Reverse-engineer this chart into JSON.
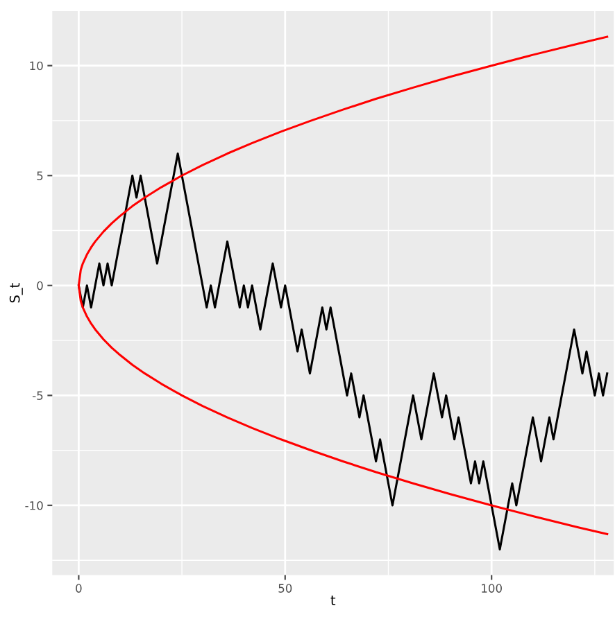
{
  "chart_data": {
    "type": "line",
    "xlabel": "t",
    "ylabel": "S_t",
    "xlim": [
      -6.4,
      129.6
    ],
    "ylim": [
      -13.17,
      12.48
    ],
    "xticks": [
      0,
      50,
      100
    ],
    "yticks": [
      -10,
      -5,
      0,
      5,
      10
    ],
    "grid": true,
    "legend": false,
    "marker": "none",
    "line_style": "solid",
    "series": [
      {
        "color": "#000000",
        "x": [
          0,
          1,
          2,
          3,
          5,
          6,
          7,
          8,
          13,
          14,
          15,
          19,
          24,
          31,
          32,
          33,
          36,
          39,
          40,
          41,
          42,
          44,
          47,
          49,
          50,
          53,
          54,
          56,
          59,
          60,
          61,
          65,
          66,
          68,
          69,
          72,
          73,
          76,
          81,
          83,
          86,
          88,
          89,
          91,
          92,
          95,
          96,
          97,
          98,
          102,
          105,
          106,
          110,
          112,
          114,
          115,
          120,
          122,
          123,
          125,
          126,
          127,
          128
        ],
        "values": [
          0,
          -1,
          0,
          -1,
          1,
          0,
          1,
          0,
          5,
          4,
          5,
          1,
          6,
          -1,
          0,
          -1,
          2,
          -1,
          0,
          -1,
          0,
          -2,
          1,
          -1,
          0,
          -3,
          -2,
          -4,
          -1,
          -2,
          -1,
          -5,
          -4,
          -6,
          -5,
          -8,
          -7,
          -10,
          -5,
          -7,
          -4,
          -6,
          -5,
          -7,
          -6,
          -9,
          -8,
          -9,
          -8,
          -12,
          -9,
          -10,
          -6,
          -8,
          -6,
          -7,
          -2,
          -4,
          -3,
          -5,
          -4,
          -5,
          -4
        ]
      },
      {
        "color": "#ff0000",
        "x": [
          128,
          121,
          110,
          100,
          90,
          81,
          72,
          64,
          56,
          49,
          42,
          36,
          30,
          25,
          20,
          16,
          13,
          10,
          8,
          6,
          4,
          3,
          2,
          1,
          0.5,
          0,
          0.5,
          1,
          2,
          3,
          4,
          6,
          8,
          10,
          13,
          16,
          20,
          25,
          30,
          36,
          42,
          49,
          56,
          64,
          72,
          81,
          90,
          100,
          110,
          121,
          128
        ],
        "values": [
          11.31,
          11,
          10.49,
          10,
          9.49,
          9,
          8.49,
          8,
          7.48,
          7,
          6.48,
          6,
          5.48,
          5,
          4.47,
          4,
          3.61,
          3.16,
          2.83,
          2.45,
          2,
          1.73,
          1.41,
          1,
          0.71,
          0,
          -0.71,
          -1,
          -1.41,
          -1.73,
          -2,
          -2.45,
          -2.83,
          -3.16,
          -3.61,
          -4,
          -4.47,
          -5,
          -5.48,
          -6,
          -6.48,
          -7,
          -7.48,
          -8,
          -8.49,
          -9,
          -9.49,
          -10,
          -10.49,
          -11,
          -11.31
        ]
      }
    ]
  }
}
